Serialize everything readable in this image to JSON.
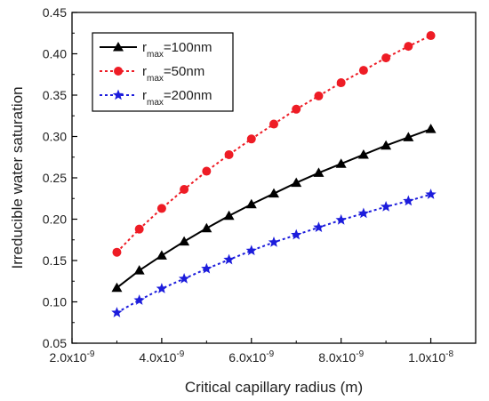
{
  "chart_data": {
    "type": "line",
    "xlabel": "Critical capillary radius (m)",
    "ylabel": "Irreducible water saturation",
    "xlim": [
      2e-09,
      1.1e-08
    ],
    "ylim": [
      0.05,
      0.45
    ],
    "x_ticks": [
      2e-09,
      4e-09,
      6e-09,
      8e-09,
      1e-08
    ],
    "x_tick_labels": [
      {
        "mantissa": "2.0x10",
        "exp": "-9"
      },
      {
        "mantissa": "4.0x10",
        "exp": "-9"
      },
      {
        "mantissa": "6.0x10",
        "exp": "-9"
      },
      {
        "mantissa": "8.0x10",
        "exp": "-9"
      },
      {
        "mantissa": "1.0x10",
        "exp": "-8"
      }
    ],
    "y_ticks": [
      0.05,
      0.1,
      0.15,
      0.2,
      0.25,
      0.3,
      0.35,
      0.4,
      0.45
    ],
    "y_tick_labels": [
      "0.05",
      "0.10",
      "0.15",
      "0.20",
      "0.25",
      "0.30",
      "0.35",
      "0.40",
      "0.45"
    ],
    "grid": false,
    "legend_position": "top-left",
    "x": [
      3e-09,
      3.5e-09,
      4e-09,
      4.5e-09,
      5e-09,
      5.5e-09,
      6e-09,
      6.5e-09,
      7e-09,
      7.5e-09,
      8e-09,
      8.5e-09,
      9e-09,
      9.5e-09,
      1e-08
    ],
    "series": [
      {
        "name": "rmax=100nm",
        "legend_base": "r",
        "legend_sub": "max",
        "legend_rest": "=100nm",
        "color": "#000000",
        "line_style": "solid",
        "marker": "triangle",
        "values": [
          0.117,
          0.138,
          0.156,
          0.173,
          0.189,
          0.204,
          0.218,
          0.231,
          0.244,
          0.256,
          0.267,
          0.278,
          0.289,
          0.299,
          0.309
        ]
      },
      {
        "name": "rmax=50nm",
        "legend_base": "r",
        "legend_sub": "max",
        "legend_rest": "=50nm",
        "color": "#ee1c25",
        "line_style": "dotted",
        "marker": "circle",
        "values": [
          0.16,
          0.188,
          0.213,
          0.236,
          0.258,
          0.278,
          0.297,
          0.315,
          0.333,
          0.349,
          0.365,
          0.38,
          0.395,
          0.409,
          0.422
        ]
      },
      {
        "name": "rmax=200nm",
        "legend_base": "r",
        "legend_sub": "max",
        "legend_rest": "=200nm",
        "color": "#1c1cdc",
        "line_style": "dotted",
        "marker": "star",
        "values": [
          0.087,
          0.102,
          0.116,
          0.128,
          0.14,
          0.151,
          0.162,
          0.172,
          0.181,
          0.19,
          0.199,
          0.207,
          0.215,
          0.222,
          0.23
        ]
      }
    ]
  }
}
